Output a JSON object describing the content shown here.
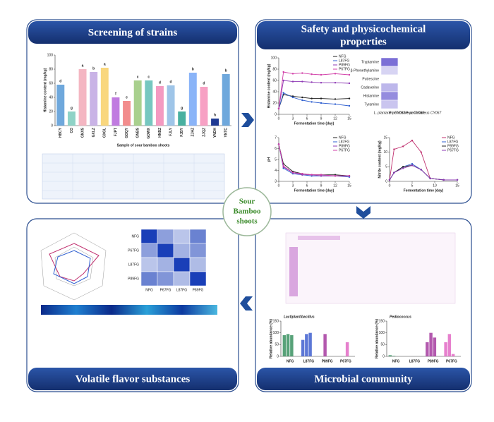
{
  "center": [
    "Sour",
    "Bamboo",
    "shoots"
  ],
  "panels": [
    {
      "title": "Screening of strains",
      "chart": {
        "type": "bar",
        "y_label": "Histamine content (mg/kg)",
        "x_label": "Sample of sour bamboo shoots",
        "categories": [
          "HBCY",
          "CO",
          "GNXS",
          "GXLZ",
          "GXGL",
          "FJPT",
          "GDQY",
          "GNBS",
          "GDWX",
          "HNBZ",
          "FJLY",
          "FJBY",
          "ZJHZ",
          "ZJQZ",
          "YNDH",
          "YNTC"
        ],
        "values": [
          58,
          20,
          80,
          76,
          82,
          40,
          35,
          64,
          64,
          56,
          57,
          20,
          75,
          55,
          10,
          73
        ],
        "letters": [
          "d",
          "g",
          "a",
          "b",
          "a",
          "f",
          "e",
          "c",
          "c",
          "d",
          "d",
          "g",
          "b",
          "d",
          "h",
          "b"
        ],
        "colors": [
          "#6fa8dc",
          "#8fd3c7",
          "#f4b6c2",
          "#c9b3e6",
          "#f9d77e",
          "#c07be0",
          "#f28c8c",
          "#a9d08e",
          "#76c7c0",
          "#f49ac1",
          "#9fc5e8",
          "#48b0a0",
          "#8ab4f8",
          "#f7a1c4",
          "#1f3a93",
          "#6fa8dc"
        ],
        "ylim": [
          0,
          100
        ],
        "yticks": [
          0,
          20,
          40,
          60,
          80,
          100
        ]
      }
    },
    {
      "title_lines": [
        "Safety and physicochemical",
        "properties"
      ],
      "histamine": {
        "type": "line",
        "y_label": "Histamine content (mg/kg)",
        "x_label": "Fermentation time (day)",
        "x": [
          0,
          1,
          3,
          5,
          7,
          9,
          12,
          15
        ],
        "xlim": [
          0,
          15
        ],
        "xticks": [
          0,
          3,
          6,
          9,
          12,
          15
        ],
        "ylim": [
          0,
          100
        ],
        "yticks": [
          0,
          20,
          40,
          60,
          80,
          100
        ],
        "series": [
          {
            "name": "NFG",
            "color": "#222222",
            "values": [
              10,
              35,
              32,
              30,
              28,
              28,
              27,
              28
            ]
          },
          {
            "name": "L87FG",
            "color": "#2f5fd0",
            "values": [
              10,
              38,
              30,
              25,
              22,
              20,
              18,
              15
            ]
          },
          {
            "name": "P89FG",
            "color": "#8e3bb5",
            "values": [
              10,
              60,
              58,
              58,
              57,
              56,
              56,
              55
            ]
          },
          {
            "name": "P67FG",
            "color": "#d13fa8",
            "values": [
              10,
              75,
              72,
              73,
              71,
              70,
              72,
              70
            ]
          }
        ]
      },
      "amines": {
        "type": "heatmap",
        "rows": [
          "Tryptamine",
          "β-Phenethylamine",
          "Putrescine",
          "Cadaverine",
          "Histamine",
          "Tyramine"
        ],
        "columns": [
          "L. plantarum CY087",
          "P. pentosaceus CY089",
          "P. pentosaceus CY067"
        ],
        "values": [
          [
            1,
            0,
            0
          ],
          [
            0.3,
            0,
            0
          ],
          [
            0,
            0,
            0
          ],
          [
            0.5,
            0,
            0
          ],
          [
            0.8,
            0,
            0
          ],
          [
            0.4,
            0,
            0
          ]
        ],
        "clim": [
          0,
          1
        ],
        "color": "#7b6fd6"
      },
      "ph": {
        "type": "line",
        "y_label": "pH",
        "x_label": "Fermentation time (day)",
        "x": [
          0,
          1,
          3,
          5,
          7,
          9,
          12,
          15
        ],
        "xlim": [
          0,
          15
        ],
        "xticks": [
          0,
          3,
          6,
          9,
          12,
          15
        ],
        "ylim": [
          3,
          7
        ],
        "yticks": [
          3,
          4,
          5,
          6,
          7
        ],
        "series": [
          {
            "name": "NFG",
            "color": "#222222",
            "values": [
              6.4,
              4.6,
              3.9,
              3.7,
              3.6,
              3.6,
              3.6,
              3.5
            ]
          },
          {
            "name": "L87FG",
            "color": "#2f5fd0",
            "values": [
              6.4,
              4.2,
              3.7,
              3.6,
              3.5,
              3.5,
              3.5,
              3.4
            ]
          },
          {
            "name": "P89FG",
            "color": "#8e3bb5",
            "values": [
              6.4,
              4.3,
              3.8,
              3.6,
              3.6,
              3.5,
              3.5,
              3.5
            ]
          },
          {
            "name": "P67FG",
            "color": "#d13fa8",
            "values": [
              6.4,
              4.4,
              3.8,
              3.7,
              3.6,
              3.6,
              3.5,
              3.5
            ]
          }
        ]
      },
      "nitrite": {
        "type": "line",
        "y_label": "Nitrite content (mg/kg)",
        "x_label": "Fermentation time (day)",
        "x": [
          0,
          1,
          3,
          5,
          7,
          9,
          12,
          15
        ],
        "xlim": [
          0,
          15
        ],
        "xticks": [
          0,
          5,
          10,
          15
        ],
        "ylim": [
          0,
          15
        ],
        "yticks": [
          0,
          5,
          10,
          15
        ],
        "series": [
          {
            "name": "NFG",
            "color": "#c0306f",
            "values": [
              0.5,
              11,
              12,
              14,
              10,
              1,
              0.5,
              0.5
            ]
          },
          {
            "name": "L87FG",
            "color": "#2f5fd0",
            "values": [
              0.5,
              3,
              5,
              6,
              4,
              1,
              0.5,
              0.5
            ]
          },
          {
            "name": "P89FG",
            "color": "#222222",
            "values": [
              0.5,
              3,
              5,
              5.5,
              4,
              1,
              0.5,
              0.5
            ]
          },
          {
            "name": "P67FG",
            "color": "#8e3bb5",
            "values": [
              0.5,
              3,
              4.5,
              5.5,
              4,
              1,
              0.5,
              0.5
            ]
          }
        ]
      }
    },
    {
      "title": "Volatile flavor substances",
      "correlation": {
        "type": "heatmap",
        "rows": [
          "NFG",
          "P67FG",
          "L87FG",
          "P89FG"
        ],
        "columns": [
          "NFG",
          "P67FG",
          "L87FG",
          "P89FG"
        ],
        "values": [
          [
            1,
            0.9,
            0.86,
            0.93
          ],
          [
            0.9,
            1,
            0.88,
            0.91
          ],
          [
            0.86,
            0.88,
            1,
            0.87
          ],
          [
            0.93,
            0.91,
            0.87,
            1
          ]
        ],
        "clim": [
          0.8,
          1
        ],
        "color": "#1a3fb8"
      }
    },
    {
      "title": "Microbial community",
      "bars": [
        {
          "type": "grouped-bar",
          "title": "Lactiplantibacillus",
          "y_label": "Relative abundance (%)",
          "ylim": [
            0,
            150
          ],
          "yticks": [
            0,
            50,
            100,
            150
          ],
          "groups": [
            {
              "name": "NFG",
              "color": "#2e8b57",
              "values": [
                90,
                95,
                90,
                0
              ]
            },
            {
              "name": "L87FG",
              "color": "#3355cc",
              "values": [
                70,
                95,
                100,
                0
              ]
            },
            {
              "name": "P89FG",
              "color": "#a0309a",
              "values": [
                0,
                95,
                0,
                0
              ]
            },
            {
              "name": "P67FG",
              "color": "#e060c0",
              "values": [
                0,
                0,
                60,
                0
              ]
            }
          ]
        },
        {
          "type": "grouped-bar",
          "title": "Pediococcus",
          "y_label": "Relative abundance (%)",
          "ylim": [
            0,
            150
          ],
          "yticks": [
            0,
            50,
            100,
            150
          ],
          "groups": [
            {
              "name": "NFG",
              "color": "#2e8b57",
              "values": [
                5,
                2,
                0,
                0
              ]
            },
            {
              "name": "L87FG",
              "color": "#3355cc",
              "values": [
                0,
                0,
                0,
                0
              ]
            },
            {
              "name": "P89FG",
              "color": "#a0309a",
              "values": [
                60,
                100,
                80,
                0
              ]
            },
            {
              "name": "P67FG",
              "color": "#e060c0",
              "values": [
                60,
                95,
                10,
                0
              ]
            }
          ]
        }
      ]
    }
  ]
}
